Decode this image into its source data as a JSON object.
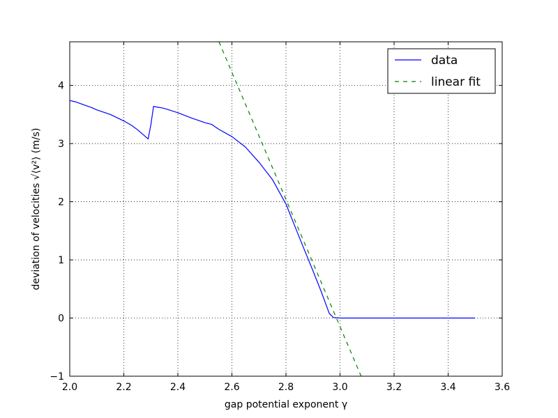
{
  "chart_data": {
    "type": "line",
    "title": "",
    "xlabel": "gap potential exponent γ",
    "ylabel": "deviation of velocities √⟨v²⟩ (m/s)",
    "xlim": [
      2.0,
      3.6
    ],
    "ylim": [
      -1,
      4.75
    ],
    "xticks": [
      2.0,
      2.2,
      2.4,
      2.6,
      2.8,
      3.0,
      3.2,
      3.4,
      3.6
    ],
    "xtick_labels": [
      "2.0",
      "2.2",
      "2.4",
      "2.6",
      "2.8",
      "3.0",
      "3.2",
      "3.4",
      "3.6"
    ],
    "yticks": [
      -1,
      0,
      1,
      2,
      3,
      4
    ],
    "ytick_labels": [
      "−1",
      "0",
      "1",
      "2",
      "3",
      "4"
    ],
    "grid": true,
    "legend_position": "top-right",
    "series": [
      {
        "name": "data",
        "style": "solid",
        "color": "#0000ff",
        "x": [
          2.0,
          2.02,
          2.05,
          2.08,
          2.1,
          2.15,
          2.2,
          2.23,
          2.25,
          2.27,
          2.29,
          2.3,
          2.31,
          2.32,
          2.345,
          2.36,
          2.4,
          2.45,
          2.5,
          2.525,
          2.55,
          2.6,
          2.65,
          2.7,
          2.75,
          2.8,
          2.85,
          2.9,
          2.93,
          2.96,
          2.975,
          3.0,
          3.1,
          3.2,
          3.3,
          3.4,
          3.5
        ],
        "y": [
          3.74,
          3.72,
          3.67,
          3.62,
          3.58,
          3.5,
          3.39,
          3.31,
          3.24,
          3.16,
          3.08,
          3.32,
          3.64,
          3.63,
          3.61,
          3.59,
          3.53,
          3.44,
          3.36,
          3.33,
          3.25,
          3.12,
          2.94,
          2.68,
          2.38,
          1.96,
          1.38,
          0.81,
          0.46,
          0.08,
          0.01,
          0.0,
          0.0,
          0.0,
          0.0,
          0.0,
          0.0
        ]
      },
      {
        "name": "linear fit",
        "style": "dashed",
        "color": "#008000",
        "x": [
          2.552,
          3.078
        ],
        "y": [
          4.75,
          -1.0
        ]
      }
    ]
  }
}
